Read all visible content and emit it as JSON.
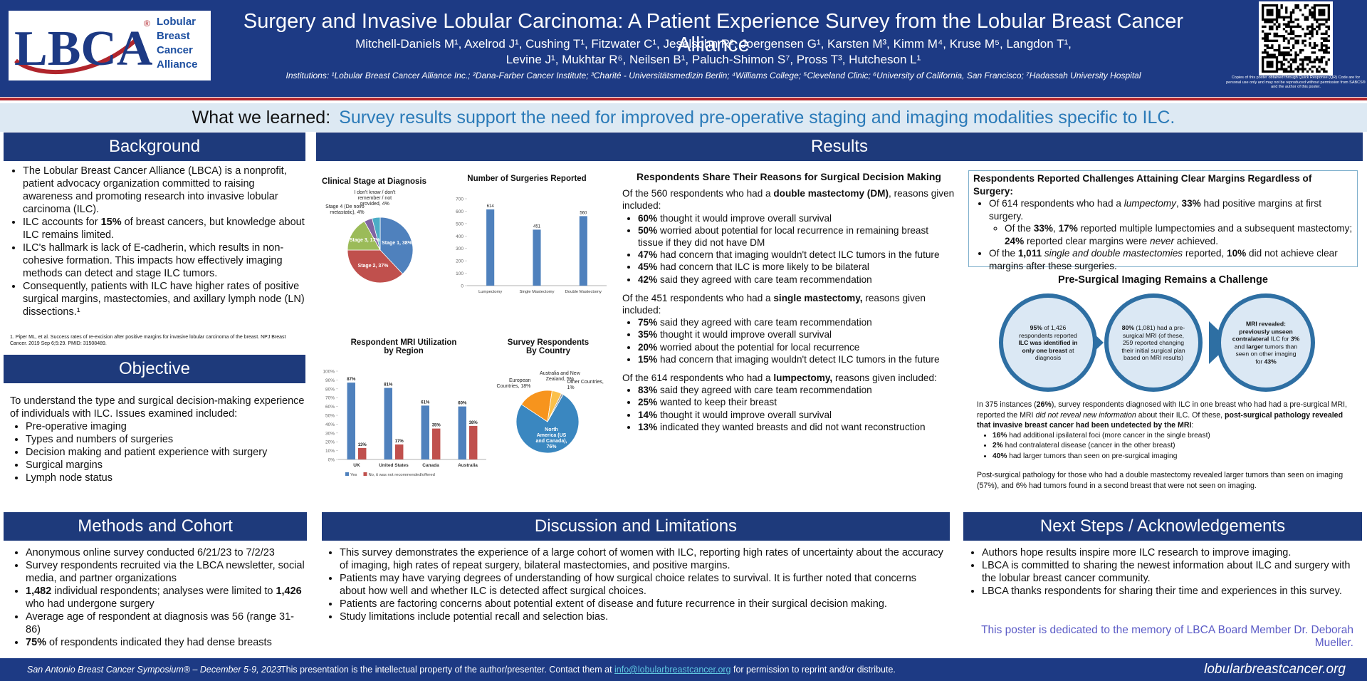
{
  "header": {
    "logo": {
      "mark": "LBCA",
      "registered": "®",
      "lines": [
        "Lobular",
        "Breast",
        "Cancer",
        "Alliance"
      ]
    },
    "title": "Surgery and Invasive Lobular Carcinoma: A Patient Experience Survey from the Lobular Breast Cancer Alliance",
    "authors": [
      "Mitchell-Daniels M¹, Axelrod J¹, Cushing T¹, Fitzwater C¹, Jeselsohn R², Joergensen G¹, Karsten M³, Kimm M⁴,  Kruse M⁵, Langdon T¹,",
      "Levine J¹, Mukhtar R⁶, Neilsen B¹, Paluch-Shimon S⁷, Pross T³, Hutcheson L¹"
    ],
    "institutions": "Institutions: ¹Lobular Breast Cancer Alliance Inc.; ²Dana-Farber Cancer Institute; ³Charité - Universitätsmedizin Berlin; ⁴Williams College; ⁵Cleveland Clinic; ⁶University of California, San Francisco; ⁷Hadassah University Hospital",
    "qr_note": "Copies of this poster obtained through Quick Response (QR) Code are for personal use only and may not be reproduced without permission from SABCS® and the author of this poster."
  },
  "learned": {
    "label": "What we learned:",
    "text": "Survey results support the need for improved pre-operative staging and imaging modalities specific to ILC."
  },
  "background": {
    "heading": "Background",
    "bullets": [
      "The Lobular Breast Cancer Alliance (LBCA) is a nonprofit, patient advocacy organization committed to raising awareness and promoting research into invasive lobular carcinoma (ILC).",
      [
        "ILC accounts for ",
        {
          "bold": "15%"
        },
        " of breast cancers, but knowledge about ILC remains limited."
      ],
      "ILC's hallmark is lack of E-cadherin, which results in non-cohesive formation. This impacts how effectively imaging methods can detect and stage ILC tumors.",
      "Consequently, patients with ILC have higher rates of positive surgical margins, mastectomies, and axillary lymph node (LN) dissections.¹"
    ],
    "footnote": "1. Piper ML, et al. Success rates of re-excision after positive margins for invasive lobular carcinoma of the breast. NPJ Breast Cancer. 2019 Sep 6;5:29. PMID: 31508489."
  },
  "objective": {
    "heading": "Objective",
    "intro": "To understand the type and surgical decision-making experience of individuals with ILC. Issues examined included:",
    "bullets": [
      "Pre-operative imaging",
      "Types and numbers of surgeries",
      "Decision making and patient experience with surgery",
      "Surgical margins",
      "Lymph node status"
    ]
  },
  "results": {
    "heading": "Results",
    "charts": [
      {
        "type": "pie",
        "title": "Clinical Stage at Diagnosis",
        "labels": [
          "Stage 1, 38%",
          "Stage 2, 37%",
          "Stage 3, 17%",
          "Stage 4 (De novo metastatic), 4%",
          "I don't know / don't remember / not provided, 4%"
        ],
        "values": [
          38,
          37,
          17,
          4,
          4
        ],
        "colors": [
          "#4f81bd",
          "#c0504d",
          "#9bbb59",
          "#8064a2",
          "#4bacc6"
        ]
      },
      {
        "type": "bar",
        "title": "Number of Surgeries Reported",
        "categories": [
          "Lumpectomy",
          "Single Mastectomy",
          "Double Mastectomy"
        ],
        "values": [
          614,
          451,
          560
        ],
        "color": "#4f81bd",
        "ylim": [
          0,
          700
        ],
        "yticks": [
          0,
          100,
          200,
          300,
          400,
          500,
          600,
          700
        ]
      },
      {
        "type": "bar",
        "title": "Respondent MRI Utilization by Region",
        "categories": [
          "UK",
          "United States",
          "Canada",
          "Australia"
        ],
        "series": [
          {
            "name": "Yes",
            "color": "#4f81bd",
            "values": [
              87,
              81,
              61,
              60
            ],
            "value_labels": [
              "87%",
              "81%",
              "61%",
              "60%"
            ]
          },
          {
            "name": "No, it was not recommended/offered",
            "color": "#c0504d",
            "values": [
              13,
              17,
              35,
              38
            ],
            "value_labels": [
              "13%",
              "17%",
              "35%",
              "38%"
            ]
          }
        ],
        "ylim": [
          0,
          100
        ],
        "yticks": [
          {
            "value": 0,
            "label": "0%"
          },
          {
            "value": 10,
            "label": "10%"
          },
          {
            "value": 20,
            "label": "20%"
          },
          {
            "value": 30,
            "label": "30%"
          },
          {
            "value": 40,
            "label": "40%"
          },
          {
            "value": 50,
            "label": "50%"
          },
          {
            "value": 60,
            "label": "60%"
          },
          {
            "value": 70,
            "label": "70%"
          },
          {
            "value": 80,
            "label": "80%"
          },
          {
            "value": 90,
            "label": "90%"
          },
          {
            "value": 100,
            "label": "100%"
          }
        ]
      },
      {
        "type": "pie",
        "title": "Survey Respondents By Country",
        "labels": [
          "North America (US and Canada), 76%",
          "European Countries, 18%",
          "Australia and New Zealand, 5%",
          "Other Countries, 1%"
        ],
        "values": [
          76,
          18,
          5,
          1
        ],
        "colors": [
          "#3a87c0",
          "#f7941d",
          "#fbc04a",
          "#9a9a9a"
        ]
      }
    ],
    "reasons": {
      "heading": "Respondents Share Their Reasons for Surgical Decision Making",
      "groups": [
        {
          "intro": [
            "Of the 560 respondents who had a ",
            {
              "bold": "double mastectomy (DM)"
            },
            ", reasons given included:"
          ],
          "bullets": [
            [
              {
                "bold": "60%"
              },
              " thought it would improve overall survival"
            ],
            [
              {
                "bold": "50%"
              },
              " worried about potential for local recurrence in remaining breast tissue if they did not have DM"
            ],
            [
              {
                "bold": "47%"
              },
              " had concern that imaging wouldn't detect ILC tumors in the future"
            ],
            [
              {
                "bold": "45%"
              },
              " had concern that ILC is more likely to be bilateral"
            ],
            [
              {
                "bold": "42%"
              },
              " said they agreed with care team recommendation"
            ]
          ]
        },
        {
          "intro": [
            "Of the 451 respondents who had a ",
            {
              "bold": "single mastectomy,"
            },
            " reasons given included:"
          ],
          "bullets": [
            [
              {
                "bold": "75%"
              },
              " said they agreed with care team recommendation"
            ],
            [
              {
                "bold": "35%"
              },
              " thought it would improve overall survival"
            ],
            [
              {
                "bold": "20%"
              },
              " worried about the potential for local recurrence"
            ],
            [
              {
                "bold": "15%"
              },
              " had concern that imaging wouldn't detect ILC tumors in the future"
            ]
          ]
        },
        {
          "intro": [
            "Of the 614 respondents who had a ",
            {
              "bold": "lumpectomy,"
            },
            " reasons given included:"
          ],
          "bullets": [
            [
              {
                "bold": "83%"
              },
              " said they agreed with care team recommendation"
            ],
            [
              {
                "bold": "25%"
              },
              " wanted to keep their breast"
            ],
            [
              {
                "bold": "14%"
              },
              " thought it would improve overall survival"
            ],
            [
              {
                "bold": "13%"
              },
              " indicated they wanted breasts and did not want reconstruction"
            ]
          ]
        }
      ]
    },
    "margins": {
      "heading": "Respondents Reported Challenges Attaining Clear Margins Regardless of Surgery:",
      "bullets": [
        {
          "text": [
            "Of 614 respondents who had a ",
            {
              "italic": "lumpectomy"
            },
            ", ",
            {
              "bold": "33%"
            },
            " had positive margins at first surgery."
          ],
          "bullets": [
            [
              "Of the ",
              {
                "bold": "33%"
              },
              ", ",
              {
                "bold": "17%"
              },
              " reported multiple lumpectomies and a subsequent mastectomy; ",
              {
                "bold": "24%"
              },
              " reported clear margins were ",
              {
                "italic": "never"
              },
              " achieved."
            ]
          ]
        },
        [
          "Of the ",
          {
            "bold": "1,011"
          },
          " ",
          {
            "italic": "single and double mastectomies"
          },
          " reported, ",
          {
            "bold": "10%"
          },
          " did not achieve clear margins after these surgeries."
        ]
      ]
    },
    "imaging": {
      "heading": "Pre-Surgical Imaging Remains a Challenge",
      "circles": [
        [
          {
            "bold": "95%"
          },
          " of 1,426 respondents reported ",
          {
            "bold": "ILC was identified in only one breast"
          },
          " at diagnosis"
        ],
        [
          {
            "bold": "80%"
          },
          " (1,081) had a pre-surgical MRI (of these, 259 reported changing their initial surgical plan based on MRI results)"
        ],
        [
          {
            "bold": "MRI revealed: previously unseen contralateral"
          },
          " ILC for ",
          {
            "bold": "3%"
          },
          " and ",
          {
            "bold": "larger"
          },
          " tumors than seen on other imaging for ",
          {
            "bold": "43%"
          }
        ]
      ],
      "paragraph": [
        "In 375 instances (",
        {
          "bold": "26%"
        },
        "), survey respondents diagnosed with ILC in one breast who had had a pre-surgical MRI, reported the MRI ",
        {
          "italic": "did not reveal new information"
        },
        " about their ILC. Of these, ",
        {
          "bold": "post-surgical pathology revealed that invasive breast cancer had been undetected by the MRI"
        },
        ":"
      ],
      "bullets": [
        [
          {
            "bold": "16%"
          },
          " had additional ipsilateral foci (more cancer in the single breast)"
        ],
        [
          {
            "bold": "2%"
          },
          " had contralateral disease (cancer in the other breast)"
        ],
        [
          {
            "bold": "40%"
          },
          " had larger tumors than seen on pre-surgical imaging"
        ]
      ],
      "closing": "Post-surgical pathology for those who had a double mastectomy revealed larger tumors than seen on imaging (57%), and 6% had tumors found in a second breast that were not seen on imaging."
    }
  },
  "methods": {
    "heading": "Methods and Cohort",
    "bullets": [
      "Anonymous online survey conducted 6/21/23 to 7/2/23",
      "Survey respondents recruited via the LBCA newsletter, social media, and partner organizations",
      [
        {
          "bold": "1,482"
        },
        " individual respondents; analyses were limited to ",
        {
          "bold": "1,426"
        },
        " who had undergone surgery"
      ],
      "Average age of respondent at diagnosis was 56 (range 31-86)",
      [
        {
          "bold": "75%"
        },
        " of respondents indicated they had dense breasts"
      ]
    ]
  },
  "discussion": {
    "heading": "Discussion and Limitations",
    "bullets": [
      "This survey demonstrates the experience of a large cohort of women with ILC, reporting high rates of uncertainty about the accuracy of imaging, high rates of repeat surgery, bilateral mastectomies, and positive margins.",
      "Patients may have varying degrees of understanding of how surgical choice relates to survival. It is further noted that concerns about how well and whether ILC is detected affect surgical choices.",
      "Patients are factoring concerns about potential extent of disease and future recurrence in their surgical decision making.",
      "Study limitations include potential recall and selection bias."
    ]
  },
  "next_steps": {
    "heading": "Next Steps / Acknowledgements",
    "bullets": [
      "Authors hope results inspire more ILC research to improve imaging.",
      "LBCA is committed to sharing the newest information about ILC and surgery with the lobular breast cancer community.",
      "LBCA thanks respondents for sharing their time and experiences in this survey."
    ],
    "dedication": "This poster is dedicated to the memory of LBCA Board Member Dr. Deborah Mueller."
  },
  "footer": {
    "meeting": "San Antonio Breast Cancer Symposium® – December 5-9, 2023",
    "notice": "This presentation is the intellectual property of the author/presenter. Contact them at",
    "email": "info@lobularbreastcancer.org",
    "notice_end": "for permission to reprint and/or distribute.",
    "website": "lobularbreastcancer.org"
  }
}
